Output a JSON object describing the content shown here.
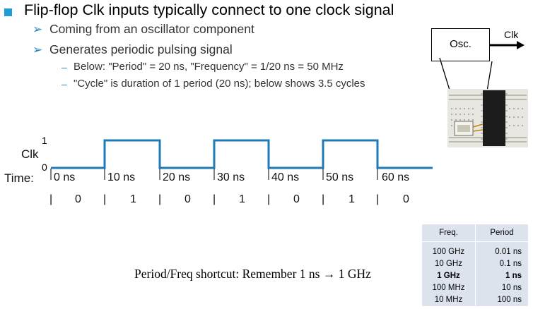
{
  "bullets": {
    "main": "Flip-flop Clk inputs typically connect to one clock signal",
    "sub1": "Coming from an oscillator component",
    "sub2": "Generates periodic pulsing signal",
    "sub2_items": [
      "Below: \"Period\" = 20 ns, \"Frequency\" = 1/20 ns = 50 MHz",
      "\"Cycle\" is duration of 1 period (20 ns); below shows 3.5 cycles"
    ],
    "arrow_glyph": "➢",
    "dash_glyph": "–"
  },
  "timing": {
    "signal_label": "Clk",
    "high_label": "1",
    "low_label": "0",
    "time_label": "Time:",
    "ticks": [
      "0 ns",
      "10 ns",
      "20 ns",
      "30 ns",
      "40 ns",
      "50 ns",
      "60 ns"
    ],
    "values": [
      "0",
      "1",
      "0",
      "1",
      "0",
      "1",
      "0"
    ],
    "separator": "|",
    "waveform_color": "#1f7ab8"
  },
  "oscillator": {
    "box_label": "Osc.",
    "output_label": "Clk"
  },
  "table": {
    "headers": [
      "Freq.",
      "Period"
    ],
    "rows": [
      {
        "freq": "100 GHz",
        "period": "0.01 ns"
      },
      {
        "freq": "10 GHz",
        "period": "0.1 ns"
      },
      {
        "freq": "1 GHz",
        "period": "1 ns"
      },
      {
        "freq": "100 MHz",
        "period": "10 ns"
      },
      {
        "freq": "10 MHz",
        "period": "100 ns"
      }
    ],
    "bold_row": 2
  },
  "shortcut_text": "Period/Freq shortcut: Remember 1 ns → 1 GHz"
}
